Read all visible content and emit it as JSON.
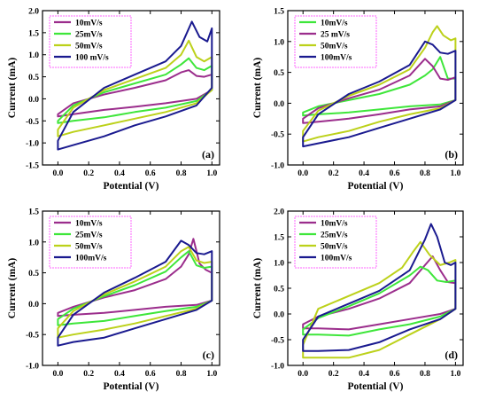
{
  "colors": {
    "purple": "#9b2d8c",
    "green": "#3ee63a",
    "yellow": "#bcd11a",
    "blue": "#1a1a8f",
    "legend_border": "#ff66ff"
  },
  "chart_data": [
    {
      "type": "line",
      "panel": "(a)",
      "xlabel": "Potential (V)",
      "ylabel": "Current (mA)",
      "xlim": [
        -0.1,
        1.05
      ],
      "ylim": [
        -1.5,
        2.0
      ],
      "xticks": [
        "0.0",
        "0.2",
        "0.4",
        "0.6",
        "0.8",
        "1.0"
      ],
      "yticks": [
        "-1.5",
        "-1.0",
        "-0.5",
        "0.0",
        "0.5",
        "1.0",
        "1.5",
        "2.0"
      ],
      "legend_position": "top-left",
      "series": [
        {
          "name": "10mV/s",
          "color": "#9b2d8c",
          "x": [
            0.0,
            0.1,
            0.3,
            0.5,
            0.7,
            0.8,
            0.85,
            0.9,
            0.95,
            1.0,
            1.0,
            0.9,
            0.7,
            0.5,
            0.3,
            0.1,
            0.0
          ],
          "y": [
            -0.35,
            -0.1,
            0.1,
            0.25,
            0.42,
            0.6,
            0.65,
            0.52,
            0.5,
            0.55,
            0.2,
            0.0,
            -0.1,
            -0.18,
            -0.25,
            -0.35,
            -0.4
          ]
        },
        {
          "name": "25mV/s",
          "color": "#3ee63a",
          "x": [
            0.0,
            0.1,
            0.3,
            0.5,
            0.7,
            0.8,
            0.85,
            0.9,
            0.95,
            1.0,
            1.0,
            0.9,
            0.7,
            0.5,
            0.3,
            0.1,
            0.0
          ],
          "y": [
            -0.5,
            -0.15,
            0.15,
            0.35,
            0.55,
            0.78,
            0.92,
            0.7,
            0.65,
            0.75,
            0.2,
            -0.05,
            -0.2,
            -0.3,
            -0.42,
            -0.5,
            -0.55
          ]
        },
        {
          "name": "50mV/s",
          "color": "#bcd11a",
          "x": [
            0.0,
            0.1,
            0.3,
            0.5,
            0.7,
            0.8,
            0.85,
            0.9,
            0.95,
            1.0,
            1.0,
            0.9,
            0.7,
            0.5,
            0.3,
            0.1,
            0.0
          ],
          "y": [
            -0.7,
            -0.2,
            0.2,
            0.45,
            0.7,
            1.0,
            1.32,
            0.95,
            0.85,
            0.95,
            0.2,
            -0.1,
            -0.3,
            -0.45,
            -0.6,
            -0.75,
            -0.85
          ]
        },
        {
          "name": "100 mV/s",
          "color": "#1a1a8f",
          "x": [
            0.0,
            0.1,
            0.3,
            0.5,
            0.7,
            0.8,
            0.87,
            0.92,
            0.97,
            1.0,
            1.0,
            0.9,
            0.7,
            0.5,
            0.3,
            0.1,
            0.0
          ],
          "y": [
            -0.95,
            -0.3,
            0.25,
            0.55,
            0.85,
            1.2,
            1.75,
            1.4,
            1.3,
            1.6,
            0.25,
            -0.15,
            -0.4,
            -0.6,
            -0.85,
            -1.05,
            -1.15
          ]
        }
      ]
    },
    {
      "type": "line",
      "panel": "(b)",
      "xlabel": "Potential (V)",
      "ylabel": "Current (mA)",
      "xlim": [
        -0.1,
        1.05
      ],
      "ylim": [
        -1.0,
        1.5
      ],
      "xticks": [
        "0.0",
        "0.2",
        "0.4",
        "0.6",
        "0.8",
        "1.0"
      ],
      "yticks": [
        "-1.0",
        "-0.5",
        "0.0",
        "0.5",
        "1.0",
        "1.5"
      ],
      "legend_position": "top-left",
      "series": [
        {
          "name": "10mV/s",
          "color": "#3ee63a",
          "x": [
            0.0,
            0.1,
            0.3,
            0.5,
            0.7,
            0.8,
            0.85,
            0.9,
            0.95,
            1.0,
            1.0,
            0.9,
            0.7,
            0.5,
            0.3,
            0.1,
            0.0
          ],
          "y": [
            -0.15,
            -0.05,
            0.05,
            0.15,
            0.3,
            0.45,
            0.55,
            0.75,
            0.4,
            0.4,
            0.05,
            -0.02,
            -0.05,
            -0.1,
            -0.15,
            -0.18,
            -0.2
          ]
        },
        {
          "name": "25 mV/s",
          "color": "#9b2d8c",
          "x": [
            0.0,
            0.1,
            0.3,
            0.5,
            0.7,
            0.8,
            0.85,
            0.9,
            0.95,
            1.0,
            1.0,
            0.9,
            0.7,
            0.5,
            0.3,
            0.1,
            0.0
          ],
          "y": [
            -0.25,
            -0.08,
            0.08,
            0.22,
            0.45,
            0.72,
            0.6,
            0.4,
            0.38,
            0.42,
            0.05,
            -0.05,
            -0.1,
            -0.18,
            -0.25,
            -0.3,
            -0.32
          ]
        },
        {
          "name": "50mV/s",
          "color": "#bcd11a",
          "x": [
            0.0,
            0.1,
            0.3,
            0.5,
            0.7,
            0.8,
            0.85,
            0.88,
            0.92,
            0.97,
            1.0,
            1.0,
            0.9,
            0.7,
            0.5,
            0.3,
            0.1,
            0.0
          ],
          "y": [
            -0.45,
            -0.12,
            0.12,
            0.3,
            0.55,
            0.9,
            1.15,
            1.25,
            1.1,
            1.02,
            1.05,
            0.05,
            -0.08,
            -0.18,
            -0.3,
            -0.45,
            -0.55,
            -0.62
          ]
        },
        {
          "name": "100mV/s",
          "color": "#1a1a8f",
          "x": [
            0.0,
            0.1,
            0.3,
            0.5,
            0.7,
            0.8,
            0.85,
            0.9,
            0.95,
            1.0,
            1.0,
            0.9,
            0.7,
            0.5,
            0.3,
            0.1,
            0.0
          ],
          "y": [
            -0.55,
            -0.18,
            0.15,
            0.35,
            0.62,
            1.0,
            0.95,
            0.82,
            0.8,
            0.85,
            0.05,
            -0.1,
            -0.25,
            -0.4,
            -0.55,
            -0.65,
            -0.7
          ]
        }
      ]
    },
    {
      "type": "line",
      "panel": "(c)",
      "xlabel": "Potential (V)",
      "ylabel": "Current (mA)",
      "xlim": [
        -0.1,
        1.05
      ],
      "ylim": [
        -1.0,
        1.5
      ],
      "xticks": [
        "0.0",
        "0.2",
        "0.4",
        "0.6",
        "0.8",
        "1.0"
      ],
      "yticks": [
        "-1.0",
        "-0.5",
        "0.0",
        "0.5",
        "1.0",
        "1.5"
      ],
      "legend_position": "top-left",
      "series": [
        {
          "name": "10mV/s",
          "color": "#9b2d8c",
          "x": [
            0.0,
            0.1,
            0.3,
            0.5,
            0.7,
            0.8,
            0.85,
            0.88,
            0.92,
            0.96,
            1.0,
            1.0,
            0.9,
            0.7,
            0.5,
            0.3,
            0.1,
            0.0
          ],
          "y": [
            -0.15,
            -0.05,
            0.1,
            0.22,
            0.4,
            0.6,
            0.8,
            1.05,
            0.65,
            0.55,
            0.5,
            0.05,
            -0.02,
            -0.05,
            -0.1,
            -0.15,
            -0.18,
            -0.2
          ]
        },
        {
          "name": "25mV/s",
          "color": "#3ee63a",
          "x": [
            0.0,
            0.1,
            0.3,
            0.5,
            0.7,
            0.8,
            0.85,
            0.9,
            0.95,
            1.0,
            1.0,
            0.9,
            0.7,
            0.5,
            0.3,
            0.1,
            0.0
          ],
          "y": [
            -0.25,
            -0.08,
            0.12,
            0.3,
            0.52,
            0.75,
            0.85,
            0.62,
            0.58,
            0.6,
            0.05,
            -0.05,
            -0.12,
            -0.2,
            -0.28,
            -0.32,
            -0.35
          ]
        },
        {
          "name": "50mV/s",
          "color": "#bcd11a",
          "x": [
            0.0,
            0.1,
            0.3,
            0.5,
            0.7,
            0.8,
            0.85,
            0.9,
            0.95,
            1.0,
            1.0,
            0.9,
            0.7,
            0.5,
            0.3,
            0.1,
            0.0
          ],
          "y": [
            -0.4,
            -0.12,
            0.15,
            0.36,
            0.6,
            0.85,
            0.92,
            0.7,
            0.66,
            0.68,
            0.05,
            -0.08,
            -0.2,
            -0.32,
            -0.42,
            -0.5,
            -0.55
          ]
        },
        {
          "name": "100mV/s",
          "color": "#1a1a8f",
          "x": [
            0.0,
            0.1,
            0.3,
            0.5,
            0.7,
            0.8,
            0.85,
            0.9,
            0.95,
            1.0,
            1.0,
            0.9,
            0.7,
            0.5,
            0.3,
            0.1,
            0.0
          ],
          "y": [
            -0.55,
            -0.18,
            0.18,
            0.42,
            0.68,
            1.02,
            0.95,
            0.82,
            0.8,
            0.85,
            0.05,
            -0.1,
            -0.25,
            -0.4,
            -0.55,
            -0.62,
            -0.68
          ]
        }
      ]
    },
    {
      "type": "line",
      "panel": "(d)",
      "xlabel": "Potential (V)",
      "ylabel": "Current (mA)",
      "xlim": [
        -0.1,
        1.05
      ],
      "ylim": [
        -1.0,
        2.0
      ],
      "xticks": [
        "0.0",
        "0.2",
        "0.4",
        "0.6",
        "0.8",
        "1.0"
      ],
      "yticks": [
        "-1.0",
        "-0.5",
        "0.0",
        "0.5",
        "1.0",
        "1.5",
        "2.0"
      ],
      "legend_position": "top-left",
      "series": [
        {
          "name": "10mV/s",
          "color": "#9b2d8c",
          "x": [
            0.0,
            0.1,
            0.3,
            0.5,
            0.7,
            0.8,
            0.85,
            0.9,
            0.95,
            1.0,
            1.0,
            0.9,
            0.7,
            0.5,
            0.3,
            0.1,
            0.0
          ],
          "y": [
            -0.2,
            -0.05,
            0.1,
            0.3,
            0.6,
            0.95,
            1.12,
            0.85,
            0.62,
            0.6,
            0.1,
            0.0,
            -0.1,
            -0.2,
            -0.3,
            -0.28,
            -0.28
          ]
        },
        {
          "name": "25mV/s",
          "color": "#3ee63a",
          "x": [
            0.0,
            0.1,
            0.3,
            0.5,
            0.7,
            0.77,
            0.82,
            0.88,
            0.94,
            1.0,
            1.0,
            0.9,
            0.7,
            0.5,
            0.3,
            0.1,
            0.0
          ],
          "y": [
            -0.3,
            -0.08,
            0.15,
            0.4,
            0.75,
            0.92,
            0.85,
            0.65,
            0.62,
            0.65,
            0.1,
            -0.05,
            -0.2,
            -0.3,
            -0.42,
            -0.4,
            -0.4
          ]
        },
        {
          "name": "50mV/s",
          "color": "#bcd11a",
          "x": [
            0.0,
            0.1,
            0.3,
            0.5,
            0.65,
            0.72,
            0.77,
            0.83,
            0.9,
            0.96,
            1.0,
            1.0,
            0.9,
            0.7,
            0.5,
            0.3,
            0.15,
            0.0
          ],
          "y": [
            -0.6,
            0.1,
            0.35,
            0.6,
            0.9,
            1.2,
            1.4,
            1.15,
            0.95,
            1.0,
            1.05,
            0.1,
            -0.1,
            -0.4,
            -0.7,
            -0.85,
            -0.85,
            -0.85
          ]
        },
        {
          "name": "100mV/s",
          "color": "#1a1a8f",
          "x": [
            0.0,
            0.1,
            0.3,
            0.5,
            0.7,
            0.8,
            0.84,
            0.88,
            0.93,
            0.97,
            1.0,
            1.0,
            0.9,
            0.7,
            0.5,
            0.3,
            0.1,
            0.0
          ],
          "y": [
            -0.5,
            -0.05,
            0.2,
            0.45,
            0.85,
            1.45,
            1.75,
            1.5,
            1.0,
            0.95,
            1.0,
            0.1,
            -0.1,
            -0.3,
            -0.55,
            -0.7,
            -0.72,
            -0.72
          ]
        }
      ]
    }
  ]
}
